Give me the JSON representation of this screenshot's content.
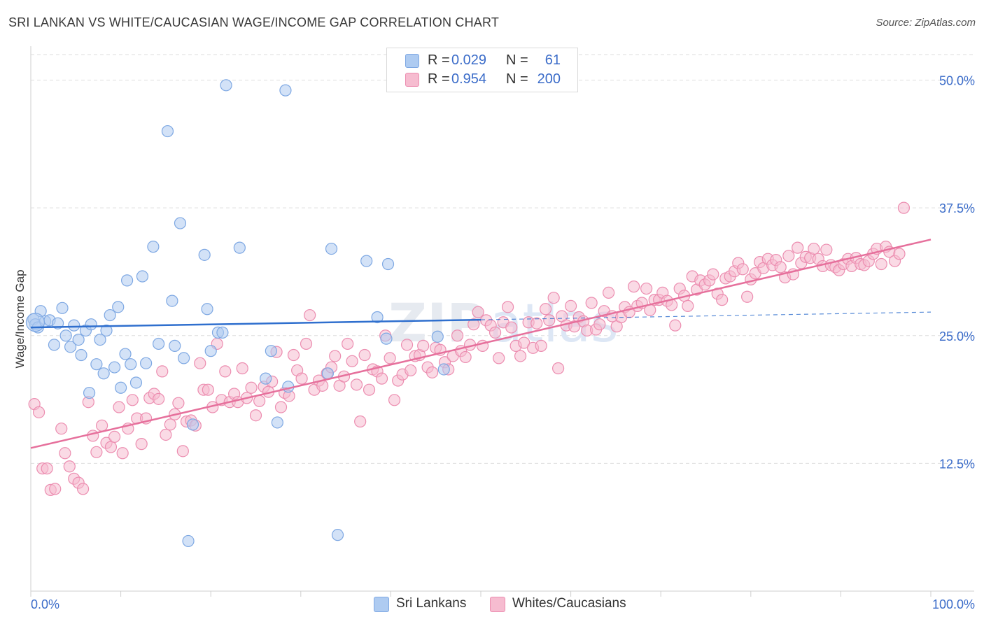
{
  "header": {
    "title": "SRI LANKAN VS WHITE/CAUCASIAN WAGE/INCOME GAP CORRELATION CHART",
    "source": "Source: ZipAtlas.com"
  },
  "legend": {
    "rows": [
      {
        "r_label": "R =",
        "r_value": "0.029",
        "n_label": "N =",
        "n_value": "61"
      },
      {
        "r_label": "R =",
        "r_value": "0.954",
        "n_label": "N =",
        "n_value": "200"
      }
    ]
  },
  "bottom_legend": {
    "items": [
      {
        "label": "Sri Lankans"
      },
      {
        "label": "Whites/Caucasians"
      }
    ]
  },
  "watermark": {
    "text1": "ZIP",
    "text2": "atlas"
  },
  "colors": {
    "blue_fill": "#aecbf1",
    "blue_stroke": "#7ea8e3",
    "blue_line": "#2f6fce",
    "pink_fill": "#f6bcd0",
    "pink_stroke": "#ec8db0",
    "pink_line": "#e6709c",
    "tick_label": "#3b6cc9",
    "grid": "#dedede"
  },
  "chart_data": {
    "type": "scatter",
    "title": "SRI LANKAN VS WHITE/CAUCASIAN WAGE/INCOME GAP CORRELATION CHART",
    "xlabel": "",
    "ylabel": "Wage/Income Gap",
    "xlim": [
      0,
      100
    ],
    "ylim": [
      0,
      52.5
    ],
    "x_tick_labels": [
      "0.0%",
      "100.0%"
    ],
    "y_ticks": [
      12.5,
      25.0,
      37.5,
      50.0
    ],
    "y_tick_labels": [
      "12.5%",
      "25.0%",
      "37.5%",
      "50.0%"
    ],
    "grid": true,
    "series": [
      {
        "name": "Sri Lankans",
        "R": 0.029,
        "N": 61,
        "trend": {
          "x0": 0,
          "y0": 25.8,
          "x1": 100,
          "y1": 27.3,
          "solid_until_x": 50
        },
        "points": [
          [
            0.3,
            26.6
          ],
          [
            0.5,
            26.1
          ],
          [
            0.8,
            25.8
          ],
          [
            1.1,
            27.4
          ],
          [
            1.6,
            26.4
          ],
          [
            2.1,
            26.5
          ],
          [
            2.6,
            24.1
          ],
          [
            3.0,
            26.2
          ],
          [
            3.5,
            27.7
          ],
          [
            3.9,
            25.0
          ],
          [
            4.4,
            23.9
          ],
          [
            4.8,
            26.0
          ],
          [
            5.3,
            24.6
          ],
          [
            5.6,
            23.1
          ],
          [
            6.1,
            25.5
          ],
          [
            6.5,
            19.4
          ],
          [
            6.7,
            26.1
          ],
          [
            7.3,
            22.2
          ],
          [
            7.7,
            24.6
          ],
          [
            8.1,
            21.3
          ],
          [
            8.4,
            25.5
          ],
          [
            8.8,
            27.0
          ],
          [
            9.3,
            21.9
          ],
          [
            9.7,
            27.8
          ],
          [
            10.0,
            19.9
          ],
          [
            10.5,
            23.2
          ],
          [
            10.7,
            30.4
          ],
          [
            11.1,
            22.2
          ],
          [
            11.7,
            20.4
          ],
          [
            12.4,
            30.8
          ],
          [
            12.8,
            22.3
          ],
          [
            13.6,
            33.7
          ],
          [
            14.2,
            24.2
          ],
          [
            15.2,
            45.0
          ],
          [
            15.7,
            28.4
          ],
          [
            16.0,
            24.0
          ],
          [
            16.6,
            36.0
          ],
          [
            17.0,
            22.8
          ],
          [
            17.5,
            4.9
          ],
          [
            18.0,
            16.3
          ],
          [
            19.3,
            32.9
          ],
          [
            19.6,
            27.6
          ],
          [
            20.0,
            23.5
          ],
          [
            20.8,
            25.3
          ],
          [
            21.3,
            25.3
          ],
          [
            21.7,
            49.5
          ],
          [
            23.2,
            33.6
          ],
          [
            26.1,
            20.8
          ],
          [
            26.7,
            23.5
          ],
          [
            27.4,
            16.5
          ],
          [
            28.3,
            49.0
          ],
          [
            28.6,
            20.0
          ],
          [
            33.0,
            21.3
          ],
          [
            33.4,
            33.5
          ],
          [
            34.1,
            5.5
          ],
          [
            37.3,
            32.3
          ],
          [
            38.5,
            26.8
          ],
          [
            39.5,
            24.7
          ],
          [
            39.7,
            32.0
          ],
          [
            45.2,
            24.9
          ],
          [
            45.9,
            21.7
          ]
        ]
      },
      {
        "name": "Whites/Caucasians",
        "R": 0.954,
        "N": 200,
        "trend": {
          "x0": 0,
          "y0": 14.0,
          "x1": 100,
          "y1": 34.4
        },
        "points": [
          [
            0.4,
            18.3
          ],
          [
            0.9,
            17.5
          ],
          [
            1.3,
            12.0
          ],
          [
            1.8,
            12.0
          ],
          [
            2.2,
            9.9
          ],
          [
            2.7,
            10.0
          ],
          [
            3.4,
            15.9
          ],
          [
            3.8,
            13.5
          ],
          [
            4.3,
            12.2
          ],
          [
            4.8,
            11.0
          ],
          [
            5.3,
            10.6
          ],
          [
            5.8,
            10.0
          ],
          [
            6.4,
            18.5
          ],
          [
            6.9,
            15.2
          ],
          [
            7.3,
            13.6
          ],
          [
            7.9,
            16.2
          ],
          [
            8.4,
            14.5
          ],
          [
            8.9,
            14.1
          ],
          [
            9.3,
            15.1
          ],
          [
            9.8,
            18.0
          ],
          [
            10.2,
            13.5
          ],
          [
            10.8,
            15.9
          ],
          [
            11.3,
            18.7
          ],
          [
            11.8,
            16.9
          ],
          [
            12.3,
            14.4
          ],
          [
            12.8,
            16.9
          ],
          [
            13.2,
            18.9
          ],
          [
            13.7,
            19.3
          ],
          [
            14.2,
            18.8
          ],
          [
            14.6,
            21.5
          ],
          [
            15.0,
            15.3
          ],
          [
            15.5,
            16.3
          ],
          [
            16.0,
            17.3
          ],
          [
            16.4,
            18.4
          ],
          [
            16.9,
            13.7
          ],
          [
            17.3,
            16.6
          ],
          [
            17.8,
            16.7
          ],
          [
            18.3,
            16.2
          ],
          [
            18.8,
            22.3
          ],
          [
            19.2,
            19.7
          ],
          [
            19.7,
            19.7
          ],
          [
            20.2,
            18.0
          ],
          [
            20.7,
            24.2
          ],
          [
            21.2,
            18.7
          ],
          [
            21.6,
            21.5
          ],
          [
            22.1,
            18.5
          ],
          [
            22.6,
            19.3
          ],
          [
            23.0,
            18.5
          ],
          [
            23.5,
            21.8
          ],
          [
            24.0,
            18.9
          ],
          [
            24.5,
            19.9
          ],
          [
            25.0,
            17.2
          ],
          [
            25.4,
            18.6
          ],
          [
            25.9,
            20.0
          ],
          [
            26.4,
            19.5
          ],
          [
            26.8,
            20.5
          ],
          [
            27.3,
            23.4
          ],
          [
            27.8,
            18.0
          ],
          [
            28.2,
            19.4
          ],
          [
            28.7,
            19.1
          ],
          [
            29.2,
            23.1
          ],
          [
            29.6,
            21.6
          ],
          [
            30.1,
            20.8
          ],
          [
            30.6,
            24.2
          ],
          [
            31.0,
            27.0
          ],
          [
            31.5,
            19.7
          ],
          [
            32.0,
            20.6
          ],
          [
            32.4,
            20.1
          ],
          [
            32.9,
            21.3
          ],
          [
            33.4,
            21.9
          ],
          [
            33.8,
            23.0
          ],
          [
            34.3,
            20.1
          ],
          [
            34.8,
            21.0
          ],
          [
            35.2,
            24.2
          ],
          [
            35.7,
            22.5
          ],
          [
            36.2,
            20.2
          ],
          [
            36.6,
            16.6
          ],
          [
            37.1,
            23.1
          ],
          [
            37.6,
            19.7
          ],
          [
            38.0,
            21.7
          ],
          [
            38.5,
            21.5
          ],
          [
            39.0,
            20.8
          ],
          [
            39.4,
            25.0
          ],
          [
            39.9,
            22.8
          ],
          [
            40.4,
            18.7
          ],
          [
            40.8,
            20.6
          ],
          [
            41.3,
            21.2
          ],
          [
            41.8,
            24.1
          ],
          [
            42.2,
            21.6
          ],
          [
            42.7,
            23.0
          ],
          [
            43.2,
            23.1
          ],
          [
            43.6,
            24.0
          ],
          [
            44.1,
            21.9
          ],
          [
            44.6,
            21.4
          ],
          [
            45.0,
            23.8
          ],
          [
            45.5,
            23.6
          ],
          [
            46.0,
            22.4
          ],
          [
            46.4,
            21.7
          ],
          [
            46.9,
            23.0
          ],
          [
            47.4,
            25.0
          ],
          [
            47.8,
            23.5
          ],
          [
            48.3,
            22.9
          ],
          [
            48.8,
            24.1
          ],
          [
            49.2,
            26.1
          ],
          [
            49.7,
            27.3
          ],
          [
            50.2,
            24.0
          ],
          [
            50.6,
            26.5
          ],
          [
            51.1,
            26.0
          ],
          [
            51.6,
            25.3
          ],
          [
            52.0,
            22.8
          ],
          [
            52.5,
            26.3
          ],
          [
            53.0,
            27.8
          ],
          [
            53.4,
            25.8
          ],
          [
            53.9,
            24.0
          ],
          [
            54.4,
            23.0
          ],
          [
            54.8,
            24.3
          ],
          [
            55.3,
            26.3
          ],
          [
            55.8,
            23.8
          ],
          [
            56.2,
            26.2
          ],
          [
            56.7,
            24.0
          ],
          [
            57.2,
            27.6
          ],
          [
            57.6,
            26.5
          ],
          [
            58.1,
            28.7
          ],
          [
            58.6,
            21.8
          ],
          [
            59.0,
            26.9
          ],
          [
            59.5,
            26.0
          ],
          [
            60.0,
            27.9
          ],
          [
            60.4,
            25.9
          ],
          [
            60.9,
            26.8
          ],
          [
            61.4,
            26.4
          ],
          [
            61.8,
            25.5
          ],
          [
            62.3,
            28.2
          ],
          [
            62.8,
            25.6
          ],
          [
            63.2,
            26.1
          ],
          [
            63.7,
            27.4
          ],
          [
            64.2,
            29.2
          ],
          [
            64.6,
            26.9
          ],
          [
            65.1,
            25.9
          ],
          [
            65.6,
            26.8
          ],
          [
            66.0,
            27.8
          ],
          [
            66.5,
            27.3
          ],
          [
            67.0,
            29.8
          ],
          [
            67.4,
            27.9
          ],
          [
            67.9,
            28.2
          ],
          [
            68.4,
            29.6
          ],
          [
            68.8,
            27.5
          ],
          [
            69.3,
            28.5
          ],
          [
            69.8,
            28.5
          ],
          [
            70.2,
            29.2
          ],
          [
            70.7,
            28.4
          ],
          [
            71.2,
            28.0
          ],
          [
            71.6,
            26.0
          ],
          [
            72.1,
            29.6
          ],
          [
            72.6,
            28.9
          ],
          [
            73.0,
            27.9
          ],
          [
            73.5,
            30.8
          ],
          [
            74.0,
            29.5
          ],
          [
            74.4,
            30.4
          ],
          [
            74.9,
            30.0
          ],
          [
            75.4,
            30.4
          ],
          [
            75.8,
            31.0
          ],
          [
            76.3,
            29.1
          ],
          [
            76.8,
            28.5
          ],
          [
            77.2,
            30.6
          ],
          [
            77.7,
            30.8
          ],
          [
            78.2,
            31.3
          ],
          [
            78.6,
            32.1
          ],
          [
            79.1,
            31.5
          ],
          [
            79.6,
            28.8
          ],
          [
            80.0,
            30.5
          ],
          [
            80.5,
            31.1
          ],
          [
            81.0,
            32.2
          ],
          [
            81.4,
            31.6
          ],
          [
            81.9,
            32.5
          ],
          [
            82.4,
            31.9
          ],
          [
            82.8,
            32.4
          ],
          [
            83.3,
            31.7
          ],
          [
            83.8,
            30.7
          ],
          [
            84.2,
            32.8
          ],
          [
            84.7,
            31.0
          ],
          [
            85.2,
            33.6
          ],
          [
            85.6,
            32.1
          ],
          [
            86.1,
            32.7
          ],
          [
            86.6,
            32.6
          ],
          [
            87.0,
            33.5
          ],
          [
            87.5,
            32.5
          ],
          [
            88.0,
            31.8
          ],
          [
            88.4,
            33.4
          ],
          [
            88.9,
            31.9
          ],
          [
            89.4,
            31.7
          ],
          [
            89.8,
            31.4
          ],
          [
            90.3,
            32.0
          ],
          [
            90.8,
            32.5
          ],
          [
            91.2,
            31.8
          ],
          [
            91.7,
            32.6
          ],
          [
            92.2,
            32.0
          ],
          [
            92.6,
            31.9
          ],
          [
            93.1,
            32.3
          ],
          [
            93.6,
            33.0
          ],
          [
            94.0,
            33.5
          ],
          [
            94.5,
            32.0
          ],
          [
            95.0,
            33.7
          ],
          [
            95.4,
            33.2
          ],
          [
            96.0,
            32.3
          ],
          [
            96.5,
            33.0
          ],
          [
            97.0,
            37.5
          ]
        ]
      }
    ]
  }
}
